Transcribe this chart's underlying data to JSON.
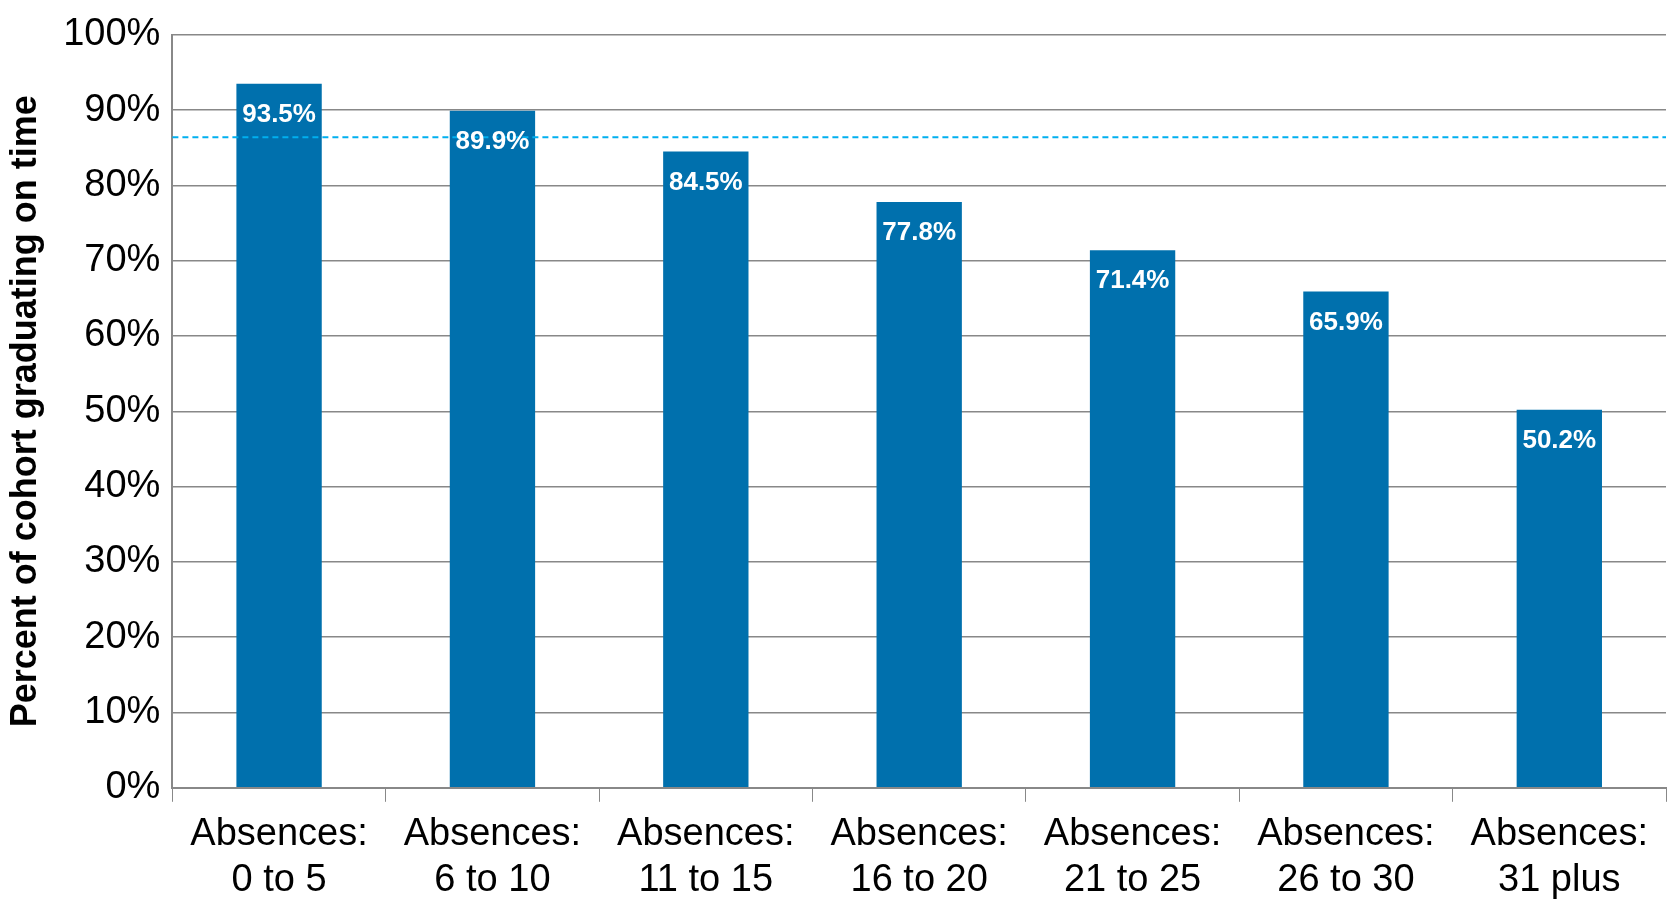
{
  "chart_data": {
    "type": "bar",
    "ylabel": "Percent of cohort graduating on time",
    "categories": [
      "Absences: 0 to 5",
      "Absences: 6 to 10",
      "Absences: 11 to 15",
      "Absences: 16 to 20",
      "Absences: 21 to 25",
      "Absences: 26 to 30",
      "Absences: 31 plus"
    ],
    "values": [
      93.5,
      89.9,
      84.5,
      77.8,
      71.4,
      65.9,
      50.2
    ],
    "value_labels": [
      "93.5%",
      "89.9%",
      "84.5%",
      "77.8%",
      "71.4%",
      "65.9%",
      "50.2%"
    ],
    "color": "#0070ad",
    "ylim": [
      0,
      100
    ],
    "yticks": [
      {
        "value": 0,
        "label": "0%"
      },
      {
        "value": 10,
        "label": "10%"
      },
      {
        "value": 20,
        "label": "20%"
      },
      {
        "value": 30,
        "label": "30%"
      },
      {
        "value": 40,
        "label": "40%"
      },
      {
        "value": 50,
        "label": "50%"
      },
      {
        "value": 60,
        "label": "60%"
      },
      {
        "value": 70,
        "label": "70%"
      },
      {
        "value": 80,
        "label": "80%"
      },
      {
        "value": 90,
        "label": "90%"
      },
      {
        "value": 100,
        "label": "100%"
      }
    ],
    "ref_lines": [
      {
        "axis": "y",
        "value": 86.4,
        "color": "#00b0f0",
        "line_style": "dashed"
      }
    ],
    "grid": "y",
    "legend": false
  }
}
